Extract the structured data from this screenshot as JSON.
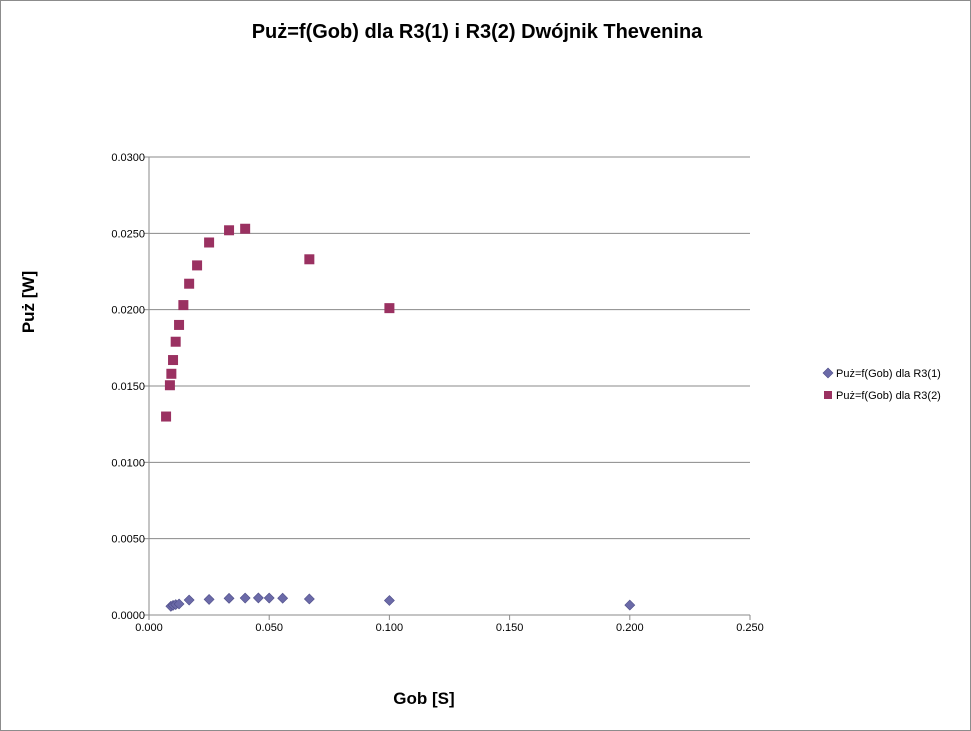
{
  "chart_data": {
    "type": "scatter",
    "title": "Puż=f(Gob) dla R3(1) i R3(2) Dwójnik Thevenina",
    "xlabel": "Gob [S]",
    "ylabel": "Puż [W]",
    "xlim": [
      0,
      0.25
    ],
    "ylim": [
      0,
      0.03
    ],
    "x_ticks": [
      "0.000",
      "0.050",
      "0.100",
      "0.150",
      "0.200",
      "0.250"
    ],
    "y_ticks": [
      "0.0000",
      "0.0050",
      "0.0100",
      "0.0150",
      "0.0200",
      "0.0250",
      "0.0300"
    ],
    "grid": "horizontal",
    "legend_position": "right",
    "series": [
      {
        "name": "Puż=f(Gob) dla R3(1)",
        "marker": "diamond",
        "color": "#6b6aa8",
        "points": [
          [
            0.0091,
            0.00057
          ],
          [
            0.01,
            0.00063
          ],
          [
            0.0111,
            0.00068
          ],
          [
            0.0125,
            0.00072
          ],
          [
            0.0167,
            0.00098
          ],
          [
            0.025,
            0.00102
          ],
          [
            0.0333,
            0.00109
          ],
          [
            0.04,
            0.00111
          ],
          [
            0.0455,
            0.00112
          ],
          [
            0.05,
            0.00111
          ],
          [
            0.0556,
            0.0011
          ],
          [
            0.0667,
            0.00105
          ],
          [
            0.1,
            0.00095
          ],
          [
            0.2,
            0.00065
          ]
        ]
      },
      {
        "name": "Puż=f(Gob) dla R3(2)",
        "marker": "square",
        "color": "#9a3161",
        "points": [
          [
            0.0071,
            0.013
          ],
          [
            0.0087,
            0.01505
          ],
          [
            0.0093,
            0.0158
          ],
          [
            0.01,
            0.0167
          ],
          [
            0.0111,
            0.0179
          ],
          [
            0.0125,
            0.019
          ],
          [
            0.0143,
            0.0203
          ],
          [
            0.0167,
            0.0217
          ],
          [
            0.02,
            0.0229
          ],
          [
            0.025,
            0.0244
          ],
          [
            0.0333,
            0.0252
          ],
          [
            0.04,
            0.0253
          ],
          [
            0.0667,
            0.0233
          ],
          [
            0.1,
            0.0201
          ]
        ]
      }
    ]
  }
}
